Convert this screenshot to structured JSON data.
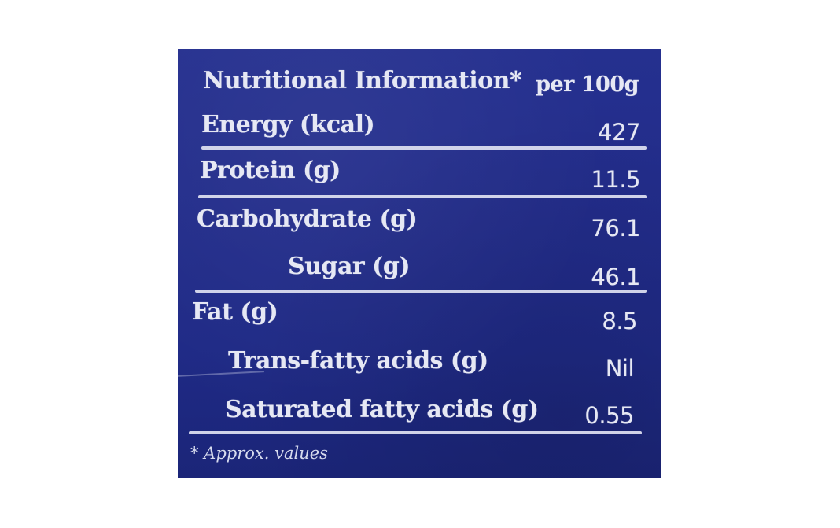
{
  "label": {
    "title": "Nutritional Information*",
    "per": "per 100g",
    "rows": [
      {
        "name": "Energy (kcal)",
        "value": "427"
      },
      {
        "name": "Protein (g)",
        "value": "11.5"
      },
      {
        "name": "Carbohydrate (g)",
        "value": "76.1"
      },
      {
        "name": "Sugar (g)",
        "value": "46.1"
      },
      {
        "name": "Fat (g)",
        "value": "8.5"
      },
      {
        "name": "Trans-fatty acids (g)",
        "value": "Nil"
      },
      {
        "name": "Saturated fatty acids (g)",
        "value": "0.55"
      }
    ],
    "footnote": "* Approx. values"
  },
  "colors": {
    "background": "#232d8c",
    "text": "#e6e8f4",
    "page": "#ffffff"
  }
}
